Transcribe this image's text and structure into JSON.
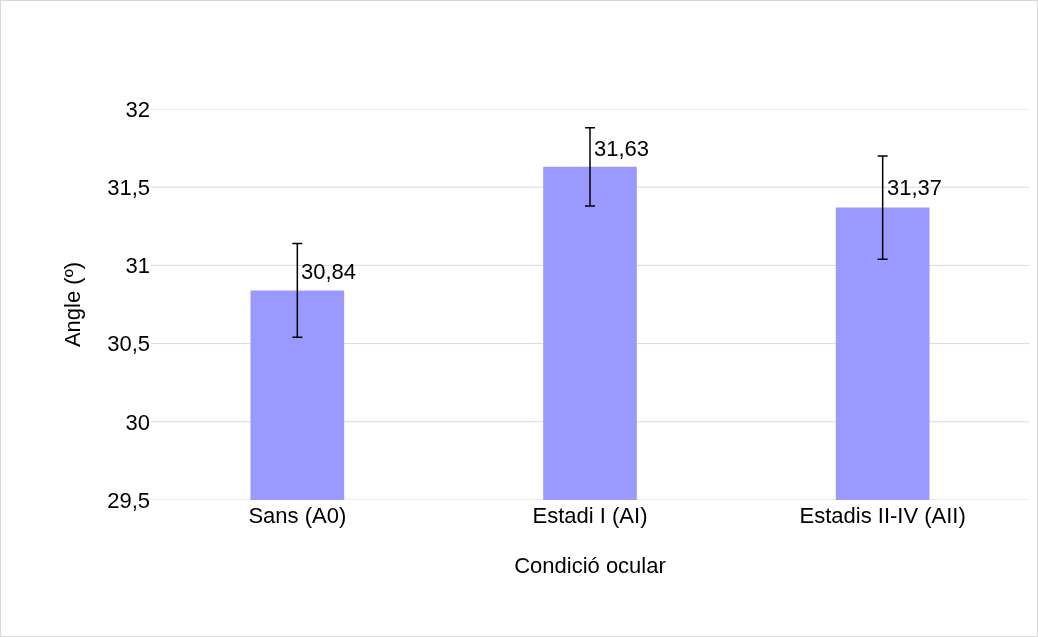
{
  "chart_data": {
    "type": "bar",
    "xlabel": "Condició ocular",
    "ylabel": "Angle (º)",
    "categories": [
      "Sans (A0)",
      "Estadi I (AI)",
      "Estadis II-IV (AII)"
    ],
    "values": [
      30.84,
      31.63,
      31.37
    ],
    "errors": [
      0.3,
      0.25,
      0.33
    ],
    "color": "#9999ff",
    "value_labels": [
      "30,84",
      "31,63",
      "31,37"
    ],
    "ylim": [
      29.5,
      32
    ],
    "yticks": [
      {
        "value": 29.5,
        "label": "29,5"
      },
      30,
      {
        "value": 30.5,
        "label": "30,5"
      },
      31,
      {
        "value": 31.5,
        "label": "31,5"
      },
      32
    ],
    "grid": "y"
  }
}
